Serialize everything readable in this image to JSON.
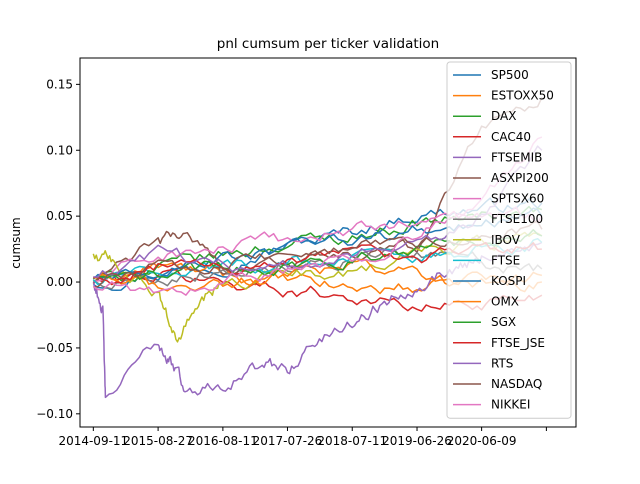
{
  "chart_data": {
    "type": "line",
    "title": "pnl cumsum per ticker validation",
    "xlabel": "",
    "ylabel": "cumsum",
    "xlim": [
      "2014-07-01",
      "2021-11-01"
    ],
    "ylim": [
      -0.11,
      0.17
    ],
    "x_ticks": [
      "2014-09-11",
      "2015-08-27",
      "2016-08-11",
      "2017-07-26",
      "2018-07-11",
      "2019-06-26",
      "2020-06-09",
      ""
    ],
    "y_ticks": [
      -0.1,
      -0.05,
      0.0,
      0.05,
      0.1,
      0.15
    ],
    "y_tick_labels": [
      "−0.10",
      "−0.05",
      "0.00",
      "0.05",
      "0.10",
      "0.15"
    ],
    "grid": false,
    "legend_position": "upper-right",
    "series": [
      {
        "name": "SP500",
        "color": "#1f77b4",
        "x": [
          "2014-09-11",
          "2015-08-27",
          "2016-08-11",
          "2017-07-26",
          "2018-07-11",
          "2019-06-26",
          "2020-06-09",
          "2021-05-01"
        ],
        "y": [
          0.0,
          0.008,
          0.015,
          0.028,
          0.038,
          0.052,
          0.056,
          0.06
        ]
      },
      {
        "name": "ESTOXX50",
        "color": "#ff7f0e",
        "x": [
          "2014-09-11",
          "2015-08-27",
          "2016-08-11",
          "2017-07-26",
          "2018-07-11",
          "2019-06-26",
          "2020-06-09",
          "2021-05-01"
        ],
        "y": [
          0.0,
          0.012,
          0.005,
          0.0,
          -0.005,
          -0.004,
          -0.002,
          0.0
        ]
      },
      {
        "name": "DAX",
        "color": "#2ca02c",
        "x": [
          "2014-09-11",
          "2015-08-27",
          "2016-08-11",
          "2017-07-26",
          "2018-07-11",
          "2019-06-26",
          "2020-06-09",
          "2021-05-01"
        ],
        "y": [
          0.0,
          0.01,
          0.02,
          0.03,
          0.035,
          0.045,
          0.05,
          0.055
        ]
      },
      {
        "name": "CAC40",
        "color": "#d62728",
        "x": [
          "2014-09-11",
          "2015-08-27",
          "2016-08-11",
          "2017-07-26",
          "2018-07-11",
          "2019-06-26",
          "2020-06-09",
          "2021-05-01"
        ],
        "y": [
          0.0,
          0.005,
          0.0,
          -0.005,
          -0.01,
          -0.02,
          -0.015,
          -0.01
        ]
      },
      {
        "name": "FTSEMIB",
        "color": "#9467bd",
        "x": [
          "2014-09-11",
          "2014-11-01",
          "2014-11-15",
          "2015-08-27",
          "2015-11-01",
          "2016-02-01",
          "2016-08-11",
          "2017-03-01",
          "2017-07-26",
          "2018-01-01",
          "2018-07-11",
          "2019-01-01",
          "2019-06-26",
          "2020-01-01",
          "2020-06-09",
          "2021-05-01"
        ],
        "y": [
          0.0,
          -0.02,
          -0.09,
          -0.045,
          -0.06,
          -0.085,
          -0.075,
          -0.065,
          -0.065,
          -0.045,
          -0.03,
          -0.015,
          0.0,
          0.01,
          0.02,
          0.03
        ]
      },
      {
        "name": "ASXPI200",
        "color": "#8c564b",
        "x": [
          "2014-09-11",
          "2015-08-27",
          "2016-02-01",
          "2016-08-11",
          "2017-07-26",
          "2018-07-11",
          "2019-06-26",
          "2020-06-09",
          "2021-05-01"
        ],
        "y": [
          0.0,
          0.03,
          0.038,
          0.01,
          0.015,
          0.02,
          0.025,
          0.12,
          0.14
        ]
      },
      {
        "name": "SPTSX60",
        "color": "#e377c2",
        "x": [
          "2014-09-11",
          "2015-08-27",
          "2016-08-11",
          "2017-07-26",
          "2018-07-11",
          "2019-06-26",
          "2020-06-09",
          "2021-05-01"
        ],
        "y": [
          0.0,
          0.02,
          0.025,
          0.03,
          0.04,
          0.045,
          0.05,
          0.05
        ]
      },
      {
        "name": "FTSE100",
        "color": "#7f7f7f",
        "x": [
          "2014-09-11",
          "2015-08-27",
          "2016-08-11",
          "2017-07-26",
          "2018-07-11",
          "2019-06-26",
          "2020-06-09",
          "2021-05-01"
        ],
        "y": [
          0.0,
          0.005,
          0.01,
          0.015,
          0.02,
          0.02,
          0.015,
          0.01
        ]
      },
      {
        "name": "IBOV",
        "color": "#bcbd22",
        "x": [
          "2014-09-11",
          "2015-01-01",
          "2015-08-27",
          "2015-12-01",
          "2016-04-01",
          "2016-08-11",
          "2017-07-26",
          "2018-07-11",
          "2019-06-26",
          "2020-06-09",
          "2021-05-01"
        ],
        "y": [
          0.02,
          0.015,
          -0.01,
          -0.045,
          -0.02,
          0.0,
          0.005,
          0.01,
          0.02,
          0.03,
          0.035
        ]
      },
      {
        "name": "FTSE",
        "color": "#17becf",
        "x": [
          "2014-09-11",
          "2015-08-27",
          "2016-08-11",
          "2017-07-26",
          "2018-07-11",
          "2019-06-26",
          "2020-06-09",
          "2021-05-01"
        ],
        "y": [
          0.0,
          0.008,
          0.012,
          0.015,
          0.018,
          0.02,
          0.025,
          0.03
        ]
      },
      {
        "name": "KOSPI",
        "color": "#1f77b4",
        "x": [
          "2014-09-11",
          "2015-08-27",
          "2016-08-11",
          "2017-07-26",
          "2018-07-11",
          "2019-06-26",
          "2020-06-09",
          "2021-05-01"
        ],
        "y": [
          0.0,
          0.012,
          0.018,
          0.022,
          0.03,
          0.04,
          0.045,
          0.05
        ]
      },
      {
        "name": "OMX",
        "color": "#ff7f0e",
        "x": [
          "2014-09-11",
          "2015-08-27",
          "2016-08-11",
          "2017-07-26",
          "2018-07-11",
          "2019-06-26",
          "2020-06-09",
          "2021-05-01"
        ],
        "y": [
          0.0,
          -0.005,
          0.0,
          0.005,
          0.01,
          0.005,
          0.0,
          0.005
        ]
      },
      {
        "name": "SGX",
        "color": "#2ca02c",
        "x": [
          "2014-09-11",
          "2015-08-27",
          "2016-08-11",
          "2017-07-26",
          "2018-07-11",
          "2019-06-26",
          "2020-06-09",
          "2021-05-01"
        ],
        "y": [
          0.0,
          0.005,
          0.01,
          0.012,
          0.02,
          0.025,
          0.03,
          0.035
        ]
      },
      {
        "name": "FTSE_JSE",
        "color": "#d62728",
        "x": [
          "2014-09-11",
          "2015-08-27",
          "2016-08-11",
          "2017-07-26",
          "2018-07-11",
          "2019-06-26",
          "2020-06-09",
          "2021-05-01"
        ],
        "y": [
          0.0,
          0.01,
          0.012,
          0.015,
          0.02,
          0.02,
          0.025,
          0.025
        ]
      },
      {
        "name": "RTS",
        "color": "#9467bd",
        "x": [
          "2014-09-11",
          "2015-08-27",
          "2016-08-11",
          "2017-07-26",
          "2018-07-11",
          "2019-06-26",
          "2020-06-09",
          "2021-05-01"
        ],
        "y": [
          0.0,
          0.02,
          0.015,
          0.01,
          0.02,
          0.03,
          0.05,
          0.1
        ]
      },
      {
        "name": "NASDAQ",
        "color": "#8c564b",
        "x": [
          "2014-09-11",
          "2015-08-27",
          "2016-08-11",
          "2017-07-26",
          "2018-07-11",
          "2019-06-26",
          "2020-06-09",
          "2021-05-01"
        ],
        "y": [
          0.0,
          0.012,
          0.015,
          0.02,
          0.025,
          0.03,
          0.035,
          0.04
        ]
      },
      {
        "name": "NIKKEI",
        "color": "#e377c2",
        "x": [
          "2014-09-11",
          "2015-08-27",
          "2016-08-11",
          "2017-07-26",
          "2018-07-11",
          "2019-06-26",
          "2020-06-09",
          "2021-05-01"
        ],
        "y": [
          0.0,
          -0.01,
          0.0,
          0.01,
          0.02,
          0.035,
          0.06,
          0.11
        ]
      }
    ]
  }
}
